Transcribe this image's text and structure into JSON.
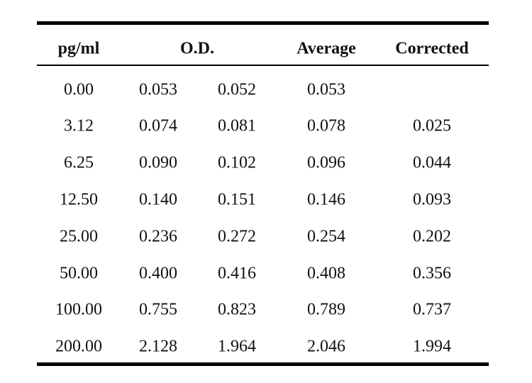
{
  "table": {
    "headers": {
      "concentration": "pg/ml",
      "od": "O.D.",
      "average": "Average",
      "corrected": "Corrected"
    },
    "rows": [
      {
        "concentration": "0.00",
        "od1": "0.053",
        "od2": "0.052",
        "average": "0.053",
        "corrected": ""
      },
      {
        "concentration": "3.12",
        "od1": "0.074",
        "od2": "0.081",
        "average": "0.078",
        "corrected": "0.025"
      },
      {
        "concentration": "6.25",
        "od1": "0.090",
        "od2": "0.102",
        "average": "0.096",
        "corrected": "0.044"
      },
      {
        "concentration": "12.50",
        "od1": "0.140",
        "od2": "0.151",
        "average": "0.146",
        "corrected": "0.093"
      },
      {
        "concentration": "25.00",
        "od1": "0.236",
        "od2": "0.272",
        "average": "0.254",
        "corrected": "0.202"
      },
      {
        "concentration": "50.00",
        "od1": "0.400",
        "od2": "0.416",
        "average": "0.408",
        "corrected": "0.356"
      },
      {
        "concentration": "100.00",
        "od1": "0.755",
        "od2": "0.823",
        "average": "0.789",
        "corrected": "0.737"
      },
      {
        "concentration": "200.00",
        "od1": "2.128",
        "od2": "1.964",
        "average": "2.046",
        "corrected": "1.994"
      }
    ]
  }
}
